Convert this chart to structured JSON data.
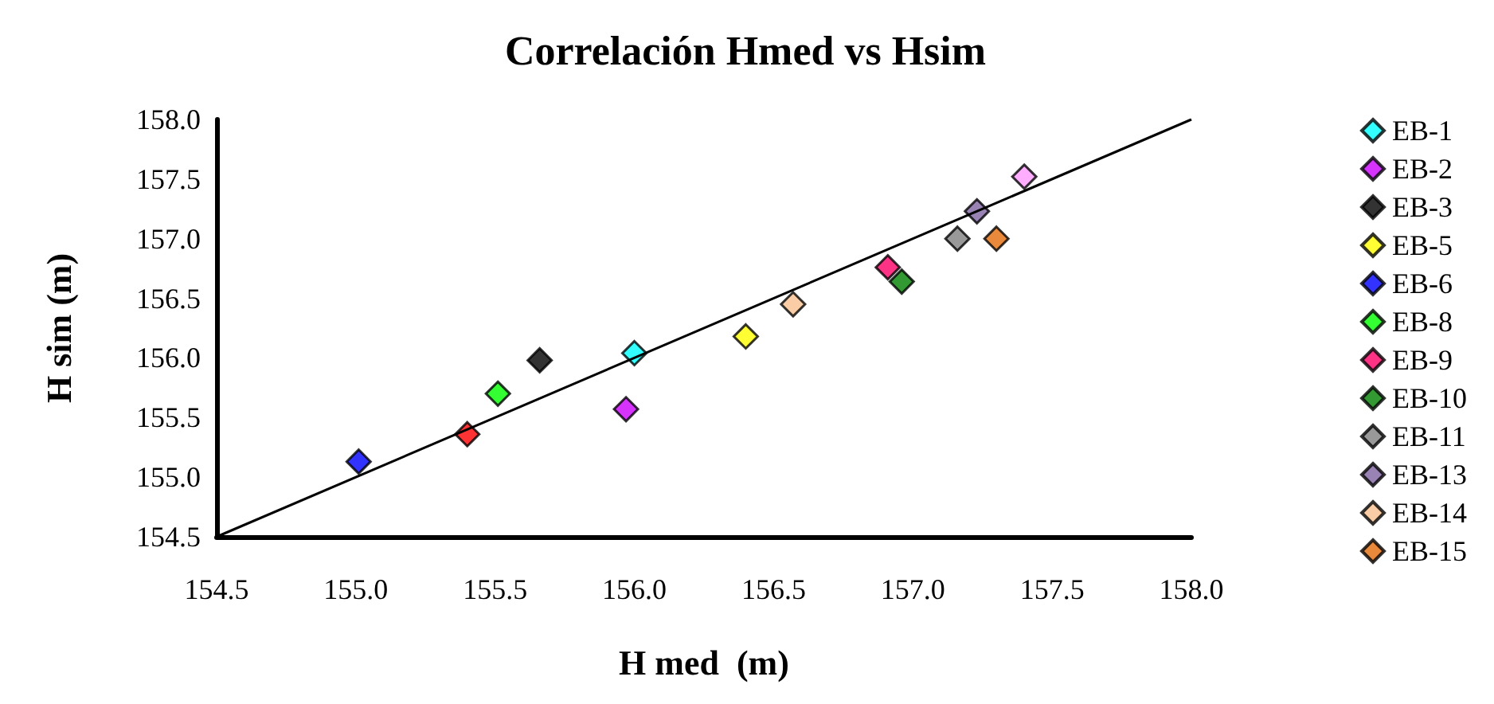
{
  "chart_data": {
    "type": "scatter",
    "title": "Correlación Hmed vs Hsim",
    "xlabel": "H med  (m)",
    "ylabel": "H sim (m)",
    "xlim": [
      154.5,
      158.0
    ],
    "xticks": [
      {
        "value": 154.5,
        "label": "154.5"
      },
      {
        "value": 155,
        "label": "155.0"
      },
      {
        "value": 155.5,
        "label": "155.5"
      },
      {
        "value": 156,
        "label": "156.0"
      },
      {
        "value": 156.5,
        "label": "156.5"
      },
      {
        "value": 157,
        "label": "157.0"
      },
      {
        "value": 157.5,
        "label": "157.5"
      },
      {
        "value": 158,
        "label": "158.0"
      }
    ],
    "ylim": [
      154.5,
      158.0
    ],
    "yticks": [
      {
        "value": 154.5,
        "label": "154.5"
      },
      {
        "value": 155,
        "label": "155.0"
      },
      {
        "value": 155.5,
        "label": "155.5"
      },
      {
        "value": 156,
        "label": "156.0"
      },
      {
        "value": 156.5,
        "label": "156.5"
      },
      {
        "value": 157,
        "label": "157.0"
      },
      {
        "value": 157.5,
        "label": "157.5"
      },
      {
        "value": 158,
        "label": "158.0"
      }
    ],
    "grid": false,
    "legend": "right",
    "marker": "diamond",
    "series": [
      {
        "type": "line",
        "color": "#000000",
        "marker": "none",
        "x": [
          154.5,
          158.0
        ],
        "values": [
          154.5,
          158.0
        ]
      },
      {
        "name": "EB-1",
        "color": "#00ffff",
        "x": [
          156.0
        ],
        "values": [
          156.04
        ]
      },
      {
        "name": "EB-2",
        "color": "#cc00ff",
        "x": [
          155.97
        ],
        "values": [
          155.57
        ]
      },
      {
        "name": "EB-3",
        "color": "#000000",
        "x": [
          155.66
        ],
        "values": [
          155.98
        ]
      },
      {
        "name": "EB-5",
        "color": "#ffff00",
        "x": [
          156.4
        ],
        "values": [
          156.18
        ]
      },
      {
        "name": "EB-6",
        "color": "#0000ff",
        "x": [
          155.01
        ],
        "values": [
          155.13
        ]
      },
      {
        "name": "EB-8",
        "color": "#00ff00",
        "x": [
          155.51
        ],
        "values": [
          155.7
        ]
      },
      {
        "name": "EB-9",
        "color": "#ff0066",
        "x": [
          156.91
        ],
        "values": [
          156.76
        ]
      },
      {
        "name": "EB-10",
        "color": "#008000",
        "x": [
          156.96
        ],
        "values": [
          156.64
        ]
      },
      {
        "name": "EB-11",
        "color": "#808080",
        "x": [
          157.16
        ],
        "values": [
          157.0
        ]
      },
      {
        "name": "EB-13",
        "color": "#8064a2",
        "x": [
          157.23
        ],
        "values": [
          157.23
        ]
      },
      {
        "name": "EB-14",
        "color": "#fac090",
        "x": [
          156.57
        ],
        "values": [
          156.45
        ]
      },
      {
        "name": "EB-15",
        "color": "#e46c0a",
        "x": [
          157.3
        ],
        "values": [
          157.0
        ]
      },
      {
        "color": "#ff0000",
        "x": [
          155.4
        ],
        "values": [
          155.36
        ]
      },
      {
        "color": "#ff99ff",
        "x": [
          157.4
        ],
        "values": [
          157.52
        ]
      }
    ]
  }
}
